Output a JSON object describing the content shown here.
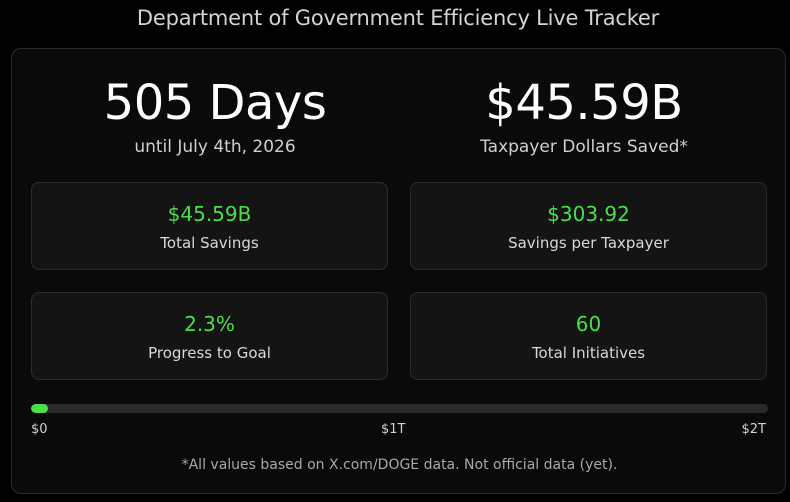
{
  "header": {
    "title": "Department of Government Efficiency Live Tracker"
  },
  "countdown": {
    "value": "505 Days",
    "caption": "until July 4th, 2026"
  },
  "savings_hero": {
    "value": "$45.59B",
    "caption": "Taxpayer Dollars Saved*"
  },
  "cards": [
    {
      "value": "$45.59B",
      "label": "Total Savings"
    },
    {
      "value": "$303.92",
      "label": "Savings per Taxpayer"
    },
    {
      "value": "2.3%",
      "label": "Progress to Goal"
    },
    {
      "value": "60",
      "label": "Total Initiatives"
    }
  ],
  "progress": {
    "percent": 2.3,
    "ticks": [
      "$0",
      "$1T",
      "$2T"
    ],
    "accent_color": "#4ade4a"
  },
  "footer": {
    "disclaimer": "*All values based on X.com/DOGE data. Not official data (yet)."
  }
}
